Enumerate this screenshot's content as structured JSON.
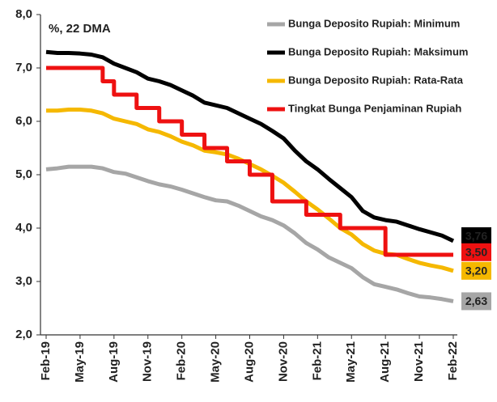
{
  "chart_data": {
    "type": "line",
    "annotation": "%, 22 DMA",
    "categories": [
      "Feb-19",
      null,
      null,
      "May-19",
      null,
      null,
      "Aug-19",
      null,
      null,
      "Nov-19",
      null,
      null,
      "Feb-20",
      null,
      null,
      "May-20",
      null,
      null,
      "Aug-20",
      null,
      null,
      "Nov-20",
      null,
      null,
      "Feb-21",
      null,
      null,
      "May-21",
      null,
      null,
      "Aug-21",
      null,
      null,
      "Nov-21",
      null,
      null,
      "Feb-22"
    ],
    "ylim": [
      2,
      8
    ],
    "yticks": [
      {
        "value": 2,
        "label": "2,0"
      },
      {
        "value": 3,
        "label": "3,0"
      },
      {
        "value": 4,
        "label": "4,0"
      },
      {
        "value": 5,
        "label": "5,0"
      },
      {
        "value": 6,
        "label": "6,0"
      },
      {
        "value": 7,
        "label": "7,0"
      },
      {
        "value": 8,
        "label": "8,0"
      }
    ],
    "grid": false,
    "legend": "upper right",
    "series": [
      {
        "name": "Bunga Deposito Rupiah: Minimum",
        "color": "#a6a6a6",
        "values": [
          5.1,
          5.12,
          5.15,
          5.15,
          5.15,
          5.12,
          5.05,
          5.02,
          4.95,
          4.88,
          4.82,
          4.78,
          4.72,
          4.65,
          4.58,
          4.52,
          4.5,
          4.42,
          4.32,
          4.22,
          4.15,
          4.05,
          3.9,
          3.72,
          3.6,
          3.45,
          3.35,
          3.25,
          3.08,
          2.95,
          2.9,
          2.85,
          2.78,
          2.72,
          2.7,
          2.67,
          2.63
        ],
        "value_labels": [
          null,
          null,
          null,
          null,
          null,
          null,
          null,
          null,
          null,
          null,
          null,
          null,
          null,
          null,
          null,
          null,
          null,
          null,
          null,
          null,
          null,
          null,
          null,
          null,
          null,
          null,
          null,
          null,
          null,
          null,
          null,
          null,
          null,
          null,
          null,
          null,
          "2,63"
        ]
      },
      {
        "name": "Bunga Deposito Rupiah: Maksimum",
        "color": "#000000",
        "values": [
          7.3,
          7.28,
          7.28,
          7.27,
          7.25,
          7.2,
          7.08,
          7.0,
          6.92,
          6.8,
          6.75,
          6.68,
          6.58,
          6.48,
          6.35,
          6.3,
          6.25,
          6.15,
          6.05,
          5.95,
          5.82,
          5.68,
          5.45,
          5.25,
          5.1,
          4.92,
          4.75,
          4.58,
          4.32,
          4.2,
          4.15,
          4.12,
          4.05,
          3.98,
          3.92,
          3.86,
          3.76
        ],
        "value_labels": [
          null,
          null,
          null,
          null,
          null,
          null,
          null,
          null,
          null,
          null,
          null,
          null,
          null,
          null,
          null,
          null,
          null,
          null,
          null,
          null,
          null,
          null,
          null,
          null,
          null,
          null,
          null,
          null,
          null,
          null,
          null,
          null,
          null,
          null,
          null,
          null,
          "3,76"
        ]
      },
      {
        "name": "Bunga Deposito Rupiah: Rata-Rata",
        "color": "#f5b800",
        "values": [
          6.2,
          6.2,
          6.22,
          6.22,
          6.2,
          6.15,
          6.05,
          6.0,
          5.95,
          5.85,
          5.8,
          5.72,
          5.62,
          5.55,
          5.45,
          5.42,
          5.38,
          5.3,
          5.2,
          5.1,
          4.98,
          4.85,
          4.68,
          4.5,
          4.35,
          4.18,
          4.0,
          3.88,
          3.7,
          3.58,
          3.52,
          3.5,
          3.42,
          3.35,
          3.3,
          3.26,
          3.2
        ],
        "value_labels": [
          null,
          null,
          null,
          null,
          null,
          null,
          null,
          null,
          null,
          null,
          null,
          null,
          null,
          null,
          null,
          null,
          null,
          null,
          null,
          null,
          null,
          null,
          null,
          null,
          null,
          null,
          null,
          null,
          null,
          null,
          null,
          null,
          null,
          null,
          null,
          null,
          "3,20"
        ]
      },
      {
        "name": "Tingkat Bunga Penjaminan Rupiah",
        "color": "#ee1111",
        "drawstyle": "steps-post",
        "values": [
          7,
          7,
          7,
          7,
          7,
          6.75,
          6.5,
          6.5,
          6.25,
          6.25,
          6.0,
          6.0,
          5.75,
          5.75,
          5.5,
          5.5,
          5.25,
          5.25,
          5.0,
          5.0,
          4.5,
          4.5,
          4.5,
          4.25,
          4.25,
          4.25,
          4.0,
          4.0,
          4.0,
          4.0,
          3.5,
          3.5,
          3.5,
          3.5,
          3.5,
          3.5,
          3.5
        ],
        "value_labels": [
          null,
          null,
          null,
          null,
          null,
          null,
          null,
          null,
          null,
          null,
          null,
          null,
          null,
          null,
          null,
          null,
          null,
          null,
          null,
          null,
          null,
          null,
          null,
          null,
          null,
          null,
          null,
          null,
          null,
          null,
          null,
          null,
          null,
          null,
          null,
          null,
          "3,50"
        ]
      }
    ]
  }
}
